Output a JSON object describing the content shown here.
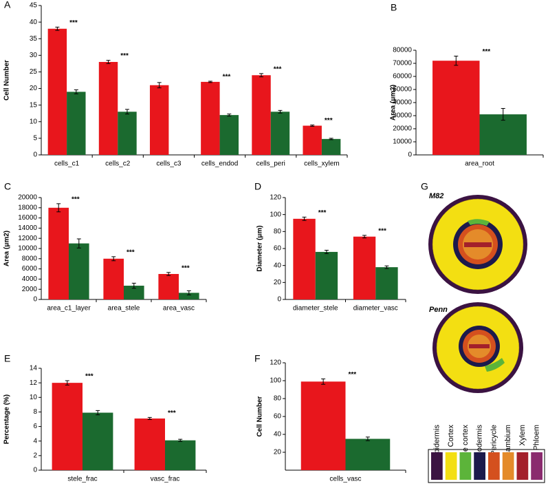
{
  "chart_data": [
    {
      "type": "bar",
      "panel_label": "A",
      "ylabel": "Cell Number",
      "ylim": [
        0,
        45
      ],
      "yticks": [
        0,
        5,
        10,
        15,
        20,
        25,
        30,
        35,
        40,
        45
      ],
      "categories": [
        "cells_c1",
        "cells_c2",
        "cells_c3",
        "cells_endod",
        "cells_peri",
        "cells_xylem"
      ],
      "series": [
        {
          "color": "#e8161c",
          "values": [
            38,
            28,
            21,
            22,
            24,
            8.8
          ],
          "errors": [
            0.5,
            0.5,
            0.8,
            0.2,
            0.5,
            0.2
          ]
        },
        {
          "color": "#1b6a2f",
          "values": [
            19,
            13,
            null,
            12,
            13,
            4.8
          ],
          "errors": [
            0.6,
            0.7,
            null,
            0.3,
            0.4,
            0.2
          ]
        }
      ],
      "annotations": [
        "***",
        "***",
        null,
        "***",
        "***",
        "***"
      ]
    },
    {
      "type": "bar",
      "panel_label": "B",
      "ylabel": "Area (μm2)",
      "ylim": [
        0,
        80000
      ],
      "yticks": [
        0,
        10000,
        20000,
        30000,
        40000,
        50000,
        60000,
        70000,
        80000
      ],
      "categories": [
        "area_root"
      ],
      "series": [
        {
          "color": "#e8161c",
          "values": [
            72000
          ],
          "errors": [
            3500
          ]
        },
        {
          "color": "#1b6a2f",
          "values": [
            31000
          ],
          "errors": [
            4500
          ]
        }
      ],
      "annotations": [
        "***"
      ]
    },
    {
      "type": "bar",
      "panel_label": "C",
      "ylabel": "Area (μm2)",
      "ylim": [
        0,
        20000
      ],
      "yticks": [
        0,
        2000,
        4000,
        6000,
        8000,
        10000,
        12000,
        14000,
        16000,
        18000,
        20000
      ],
      "categories": [
        "area_c1_layer",
        "area_stele",
        "area_vasc"
      ],
      "series": [
        {
          "color": "#e8161c",
          "values": [
            18000,
            8000,
            5000
          ],
          "errors": [
            800,
            400,
            300
          ]
        },
        {
          "color": "#1b6a2f",
          "values": [
            11000,
            2700,
            1300
          ],
          "errors": [
            900,
            500,
            400
          ]
        }
      ],
      "annotations": [
        "***",
        "***",
        "***"
      ]
    },
    {
      "type": "bar",
      "panel_label": "D",
      "ylabel": "Diameter (μm)",
      "ylim": [
        0,
        120
      ],
      "yticks": [
        0,
        20,
        40,
        60,
        80,
        100,
        120
      ],
      "categories": [
        "diameter_stele",
        "diameter_vasc"
      ],
      "series": [
        {
          "color": "#e8161c",
          "values": [
            95,
            74
          ],
          "errors": [
            2,
            1.5
          ]
        },
        {
          "color": "#1b6a2f",
          "values": [
            56,
            38
          ],
          "errors": [
            2,
            1.5
          ]
        }
      ],
      "annotations": [
        "***",
        "***"
      ]
    },
    {
      "type": "bar",
      "panel_label": "E",
      "ylabel": "Percentage (%)",
      "ylim": [
        0,
        14
      ],
      "yticks": [
        0,
        2,
        4,
        6,
        8,
        10,
        12,
        14
      ],
      "categories": [
        "stele_frac",
        "vasc_frac"
      ],
      "series": [
        {
          "color": "#e8161c",
          "values": [
            12,
            7.1
          ],
          "errors": [
            0.3,
            0.15
          ]
        },
        {
          "color": "#1b6a2f",
          "values": [
            7.9,
            4.1
          ],
          "errors": [
            0.3,
            0.15
          ]
        }
      ],
      "annotations": [
        "***",
        "***"
      ]
    },
    {
      "type": "bar",
      "panel_label": "F",
      "ylabel": "Cell Number",
      "ylim": [
        0,
        120
      ],
      "yticks": [
        20,
        40,
        60,
        80,
        100,
        120
      ],
      "categories": [
        "cells_vasc"
      ],
      "series": [
        {
          "color": "#e8161c",
          "values": [
            99
          ],
          "errors": [
            3
          ]
        },
        {
          "color": "#1b6a2f",
          "values": [
            35
          ],
          "errors": [
            2
          ]
        }
      ],
      "annotations": [
        "***"
      ]
    }
  ],
  "diagram": {
    "panel_label": "G",
    "sections": [
      {
        "label": "M82"
      },
      {
        "label": "Penn"
      }
    ],
    "legend": [
      {
        "label": "Epidermis",
        "color": "#3b1342"
      },
      {
        "label": "Cortex",
        "color": "#f3df12"
      },
      {
        "label": "Middle cortex",
        "color": "#5cb43a"
      },
      {
        "label": "Endodermis",
        "color": "#1c1a4c"
      },
      {
        "label": "Pericycle",
        "color": "#d4501e"
      },
      {
        "label": "Procambium",
        "color": "#e48b2a"
      },
      {
        "label": "Xylem",
        "color": "#a3202b"
      },
      {
        "label": "Phloem",
        "color": "#8a2b6e"
      }
    ]
  }
}
